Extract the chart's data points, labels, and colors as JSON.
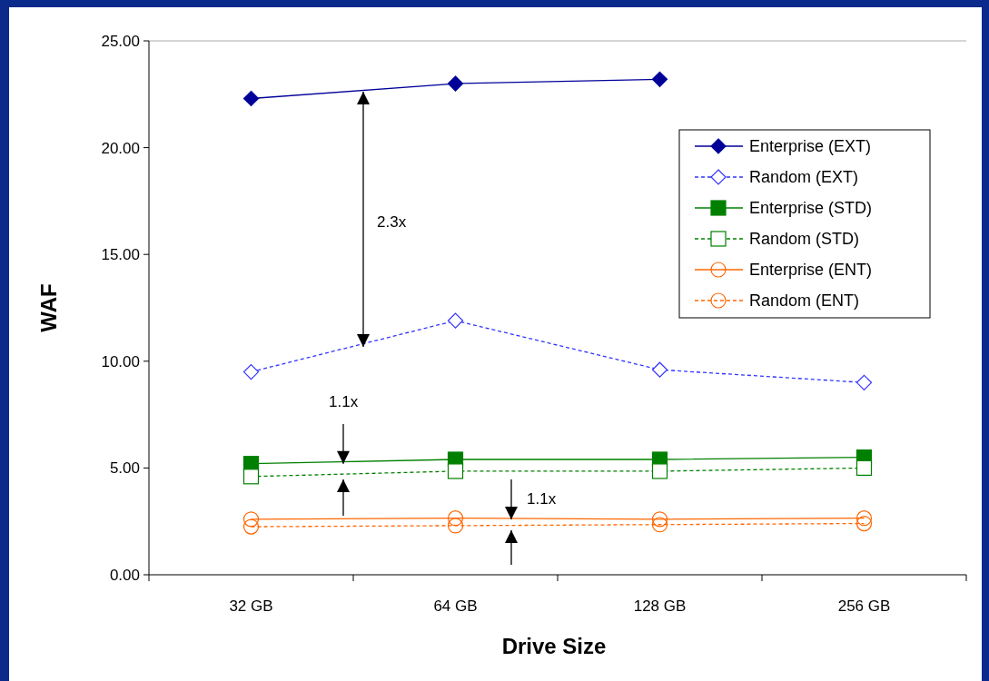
{
  "chart_data": {
    "type": "line",
    "xlabel": "Drive Size",
    "ylabel": "WAF",
    "categories": [
      "32 GB",
      "64 GB",
      "128 GB",
      "256 GB"
    ],
    "ylim": [
      0,
      25
    ],
    "yticks": [
      {
        "value": 0,
        "label": "0.00"
      },
      {
        "value": 5,
        "label": "5.00"
      },
      {
        "value": 10,
        "label": "10.00"
      },
      {
        "value": 15,
        "label": "15.00"
      },
      {
        "value": 20,
        "label": "20.00"
      },
      {
        "value": 25,
        "label": "25.00"
      }
    ],
    "grid": false,
    "legend": "right",
    "series": [
      {
        "name": "Enterprise (EXT)",
        "color": "#000099",
        "marker": "diamond",
        "line_style": "solid",
        "values": [
          22.3,
          23.0,
          23.2,
          null
        ]
      },
      {
        "name": "Random (EXT)",
        "color": "#3333ff",
        "marker": "diamond",
        "line_style": "dashed",
        "values": [
          9.5,
          11.9,
          9.6,
          9.0
        ]
      },
      {
        "name": "Enterprise (STD)",
        "color": "#008000",
        "marker": "square",
        "line_style": "solid",
        "values": [
          5.2,
          5.4,
          5.4,
          5.5
        ]
      },
      {
        "name": "Random (STD)",
        "color": "#008000",
        "marker": "square",
        "line_style": "dashed",
        "values": [
          4.6,
          4.85,
          4.85,
          5.0
        ]
      },
      {
        "name": "Enterprise (ENT)",
        "color": "#ff6600",
        "marker": "circle",
        "line_style": "solid",
        "values": [
          2.6,
          2.65,
          2.6,
          2.65
        ]
      },
      {
        "name": "Random (ENT)",
        "color": "#ff6600",
        "marker": "circle",
        "line_style": "dashed",
        "values": [
          2.25,
          2.3,
          2.35,
          2.4
        ]
      }
    ],
    "annotations": [
      "2.3x",
      {
        "text": "1.1x",
        "y": 5.2
      },
      "1.1x"
    ]
  }
}
